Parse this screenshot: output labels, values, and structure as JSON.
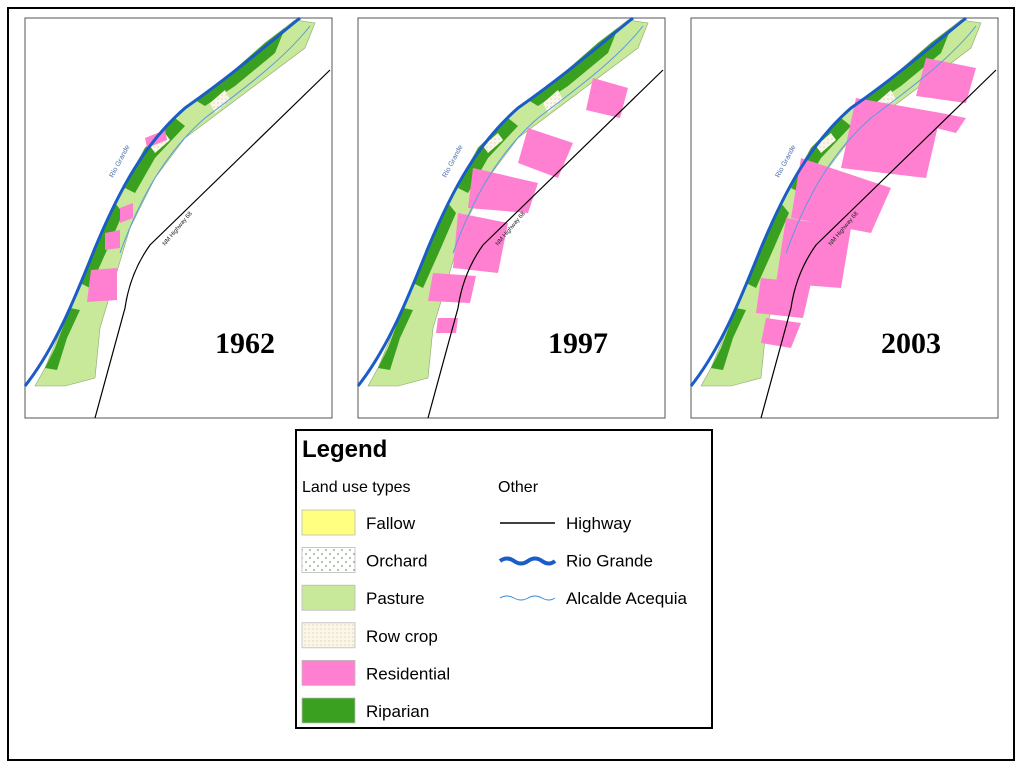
{
  "panels": [
    {
      "year": "1962"
    },
    {
      "year": "1997"
    },
    {
      "year": "2003"
    }
  ],
  "map_labels": {
    "river": "Rio Grande",
    "highway": "NM Highway 68"
  },
  "legend": {
    "title": "Legend",
    "land_use_heading": "Land use types",
    "land_use": [
      "Fallow",
      "Orchard",
      "Pasture",
      "Row crop",
      "Residential",
      "Riparian"
    ],
    "other_heading": "Other",
    "other": [
      "Highway",
      "Rio Grande",
      "Alcalde Acequia"
    ]
  }
}
